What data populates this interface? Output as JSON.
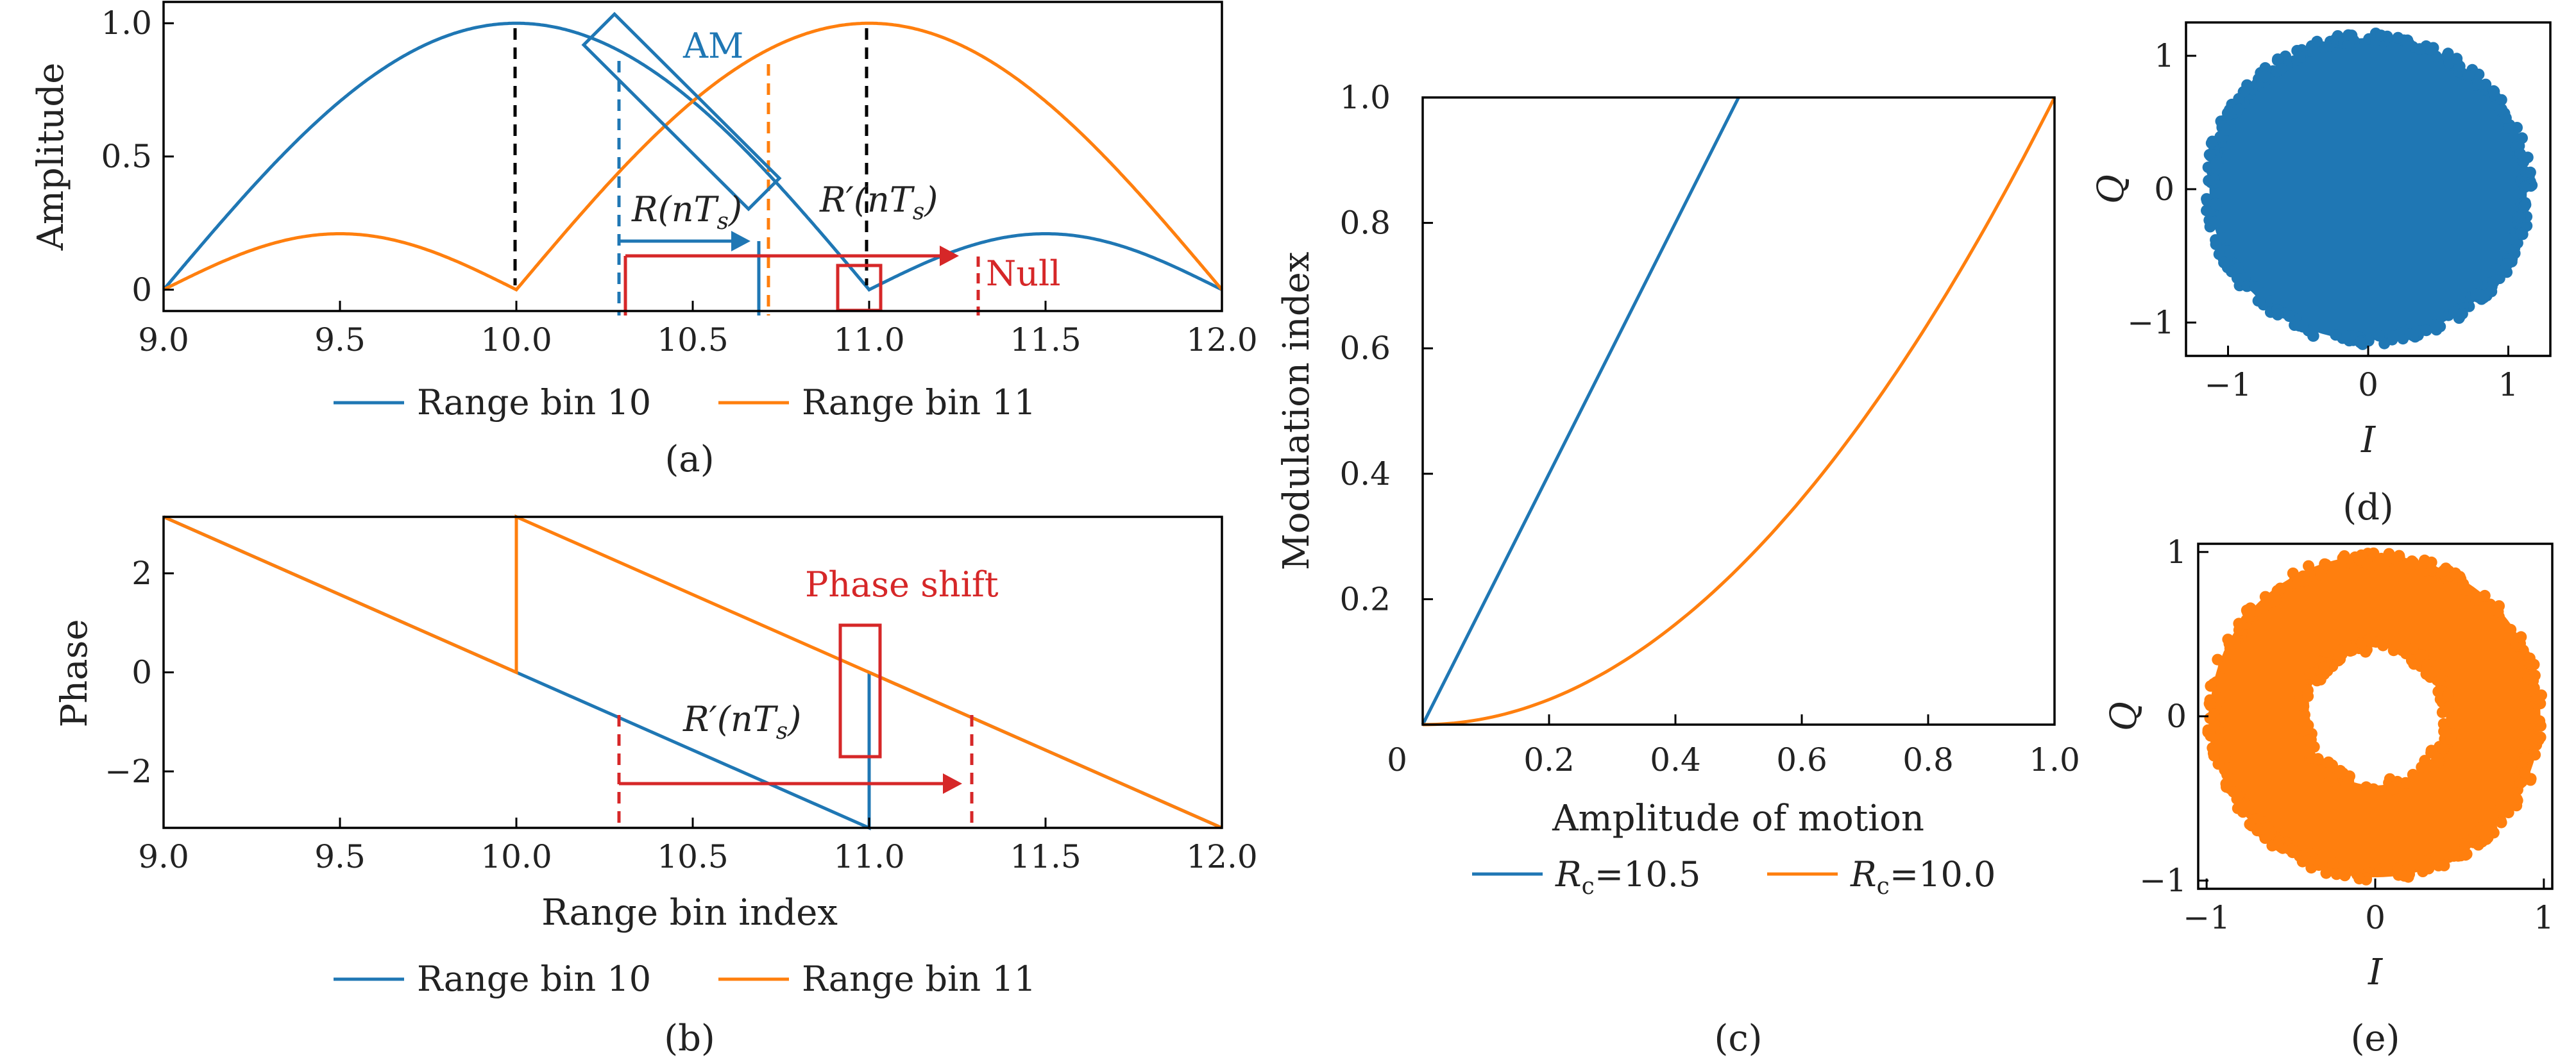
{
  "chart_data": [
    {
      "panel": "a",
      "type": "line",
      "caption": "(a)",
      "xlabel": "",
      "ylabel": "Amplitude",
      "xlim": [
        9.0,
        12.0
      ],
      "ylim": [
        -0.08,
        1.08
      ],
      "xticks": [
        "9.0",
        "9.5",
        "10.0",
        "10.5",
        "11.0",
        "11.5",
        "12.0"
      ],
      "yticks": [
        "0",
        "0.5",
        "1.0"
      ],
      "series": [
        {
          "name": "Range bin 10",
          "color": "#1f77b4",
          "x": [
            9.0,
            9.25,
            9.5,
            9.75,
            10.0,
            10.25,
            10.5,
            10.75,
            11.0,
            11.25,
            11.5,
            11.75,
            12.0
          ],
          "y": [
            0.0,
            0.58,
            0.88,
            0.98,
            1.0,
            0.91,
            0.64,
            0.27,
            0.0,
            0.16,
            0.21,
            0.14,
            0.0
          ]
        },
        {
          "name": "Range bin 11",
          "color": "#ff7f0e",
          "x": [
            9.0,
            9.25,
            9.5,
            9.75,
            10.0,
            10.25,
            10.5,
            10.75,
            11.0,
            11.25,
            11.5,
            11.75,
            12.0
          ],
          "y": [
            0.0,
            0.14,
            0.21,
            0.16,
            0.0,
            0.27,
            0.64,
            0.91,
            1.0,
            0.98,
            0.88,
            0.58,
            0.0
          ]
        }
      ],
      "annotations": {
        "am_label": "AM",
        "r_label": "R(nT",
        "r_sub": "s",
        "r_prime_label": "R′(nT",
        "r_prime_sub": "s",
        "null_label": "Null",
        "close_paren": ")"
      },
      "colors": {
        "blue": "#1f77b4",
        "orange": "#ff7f0e",
        "red": "#d62728",
        "black": "#000000"
      }
    },
    {
      "panel": "b",
      "type": "line",
      "caption": "(b)",
      "xlabel": "Range bin index",
      "ylabel": "Phase",
      "xlim": [
        9.0,
        12.0
      ],
      "ylim": [
        -3.14,
        3.14
      ],
      "xticks": [
        "9.0",
        "9.5",
        "10.0",
        "10.5",
        "11.0",
        "11.5",
        "12.0"
      ],
      "yticks": [
        "2",
        "0",
        "−2"
      ],
      "series": [
        {
          "name": "Range bin 10",
          "color": "#1f77b4",
          "x": [
            9.0,
            10.0,
            11.0,
            11.0,
            12.0
          ],
          "y": [
            3.14,
            0.0,
            -3.14,
            0.0,
            -3.14
          ]
        },
        {
          "name": "Range bin 11",
          "color": "#ff7f0e",
          "x": [
            9.0,
            10.0,
            10.0,
            12.0
          ],
          "y": [
            3.14,
            0.0,
            3.14,
            -3.14
          ]
        }
      ],
      "annotations": {
        "phase_shift_label": "Phase shift",
        "r_prime_label": "R′(nT",
        "r_prime_sub": "s",
        "close_paren": ")"
      }
    },
    {
      "panel": "c",
      "type": "line",
      "caption": "(c)",
      "xlabel": "Amplitude of motion",
      "ylabel": "Modulation index",
      "xlim": [
        0,
        1.0
      ],
      "ylim": [
        0,
        1.0
      ],
      "xticks": [
        "0",
        "0.2",
        "0.4",
        "0.6",
        "0.8",
        "1.0"
      ],
      "yticks": [
        "0.2",
        "0.4",
        "0.6",
        "0.8",
        "1.0"
      ],
      "series": [
        {
          "name": "R",
          "name_sub": "c",
          "name_value": "=10.5",
          "color": "#1f77b4",
          "x": [
            0.0,
            0.1,
            0.2,
            0.3,
            0.4,
            0.5
          ],
          "y": [
            0.0,
            0.2,
            0.4,
            0.6,
            0.8,
            1.0
          ]
        },
        {
          "name": "R",
          "name_sub": "c",
          "name_value": "=10.0",
          "color": "#ff7f0e",
          "x": [
            0.0,
            0.1,
            0.2,
            0.3,
            0.4,
            0.5,
            0.6,
            0.7,
            0.8,
            0.9,
            1.0
          ],
          "y": [
            0.0,
            0.01,
            0.04,
            0.09,
            0.16,
            0.25,
            0.36,
            0.49,
            0.64,
            0.81,
            1.0
          ]
        }
      ]
    },
    {
      "panel": "d",
      "type": "scatter",
      "caption": "(d)",
      "xlabel": "I",
      "ylabel": "Q",
      "xlim": [
        -1.3,
        1.3
      ],
      "ylim": [
        -1.25,
        1.25
      ],
      "xticks": [
        "−1",
        "0",
        "1"
      ],
      "yticks": [
        "1",
        "0",
        "−1"
      ],
      "shape": "disk",
      "inner_radius": 0.0,
      "outer_radius": 1.15,
      "color": "#1f77b4"
    },
    {
      "panel": "e",
      "type": "scatter",
      "caption": "(e)",
      "xlabel": "I",
      "ylabel": "Q",
      "xlim": [
        -1.05,
        1.05
      ],
      "ylim": [
        -1.05,
        1.05
      ],
      "xticks": [
        "−1",
        "0",
        "1"
      ],
      "yticks": [
        "1",
        "0",
        "−1"
      ],
      "shape": "ring",
      "inner_radius": 0.42,
      "outer_radius": 0.98,
      "color": "#ff7f0e"
    }
  ]
}
